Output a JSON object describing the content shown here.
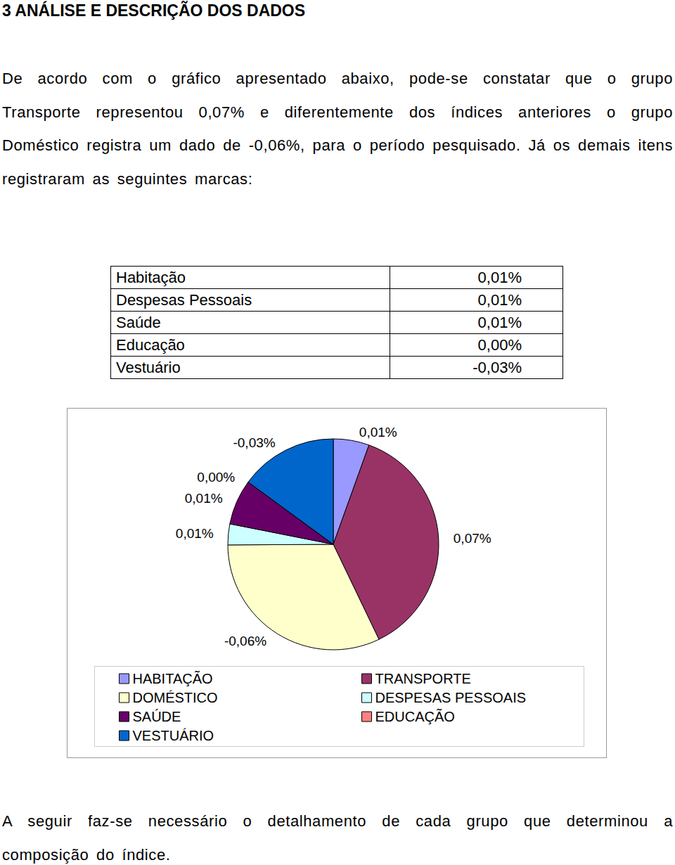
{
  "heading": "3 ANÁLISE E DESCRIÇÃO DOS DADOS",
  "intro": "De acordo com o gráfico apresentado abaixo, pode-se constatar que o grupo Transporte representou 0,07% e diferentemente dos índices anteriores o grupo Doméstico registra um dado de -0,06%, para o período pesquisado. Já os demais itens registraram as seguintes marcas:",
  "table": {
    "rows": [
      [
        "Habitação",
        "0,01%"
      ],
      [
        "Despesas Pessoais",
        "0,01%"
      ],
      [
        "Saúde",
        "0,01%"
      ],
      [
        "Educação",
        "0,00%"
      ],
      [
        "Vestuário",
        "-0,03%"
      ]
    ]
  },
  "chart_data": {
    "type": "pie",
    "categories": [
      "HABITAÇÃO",
      "TRANSPORTE",
      "DOMÉSTICO",
      "DESPESAS PESSOAIS",
      "SAÚDE",
      "EDUCAÇÃO",
      "VESTUÁRIO"
    ],
    "values": [
      0.0103,
      0.07,
      -0.06,
      0.006,
      0.013,
      0,
      -0.028
    ],
    "value_labels": [
      "0,01%",
      "0,07%",
      "-0,06%",
      "0,01%",
      "0,01%",
      "0,00%",
      "-0,03%"
    ],
    "colors": [
      "#9999ff",
      "#993366",
      "#ffffcc",
      "#ccffff",
      "#660066",
      "#ff8080",
      "#0066cc"
    ],
    "data_labels": true,
    "legend": "bottom"
  },
  "closing": "A seguir faz-se necessário o detalhamento de cada grupo que determinou a composição do índice."
}
